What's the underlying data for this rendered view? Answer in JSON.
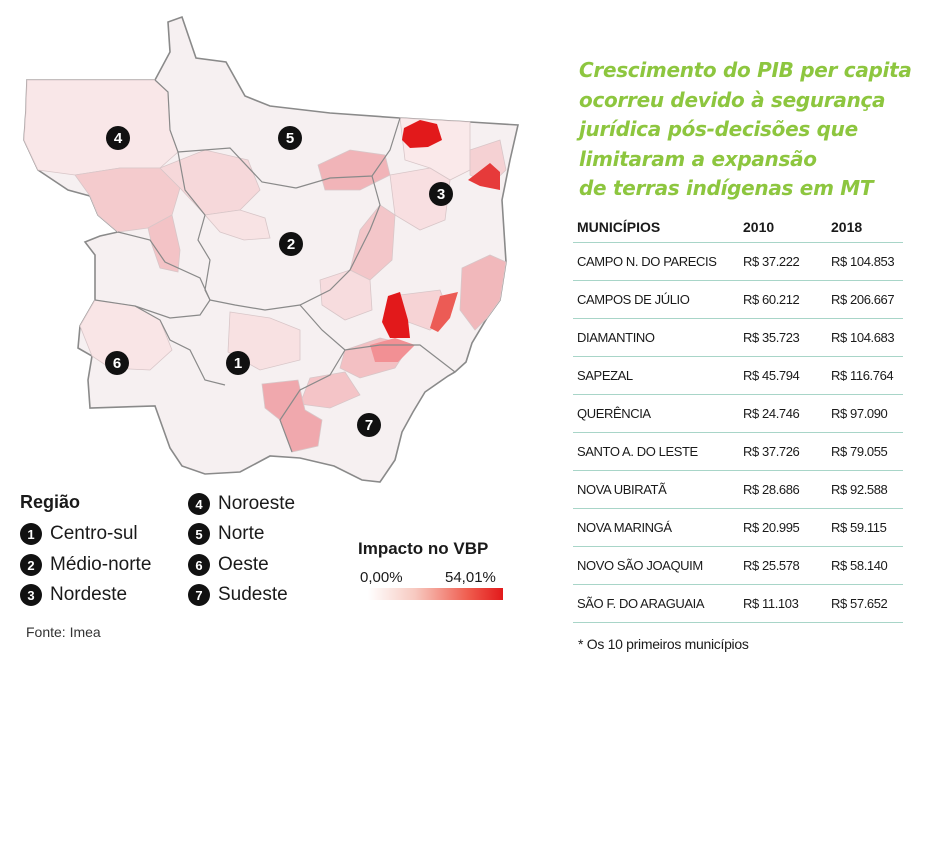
{
  "headline": [
    "Crescimento do PIB per capita",
    "ocorreu devido à segurança",
    "jurídica pós-decisões que",
    "limitaram a expansão",
    "de terras indígenas em MT"
  ],
  "table": {
    "headers": [
      "MUNICÍPIOS",
      "2010",
      "2018"
    ],
    "rows": [
      [
        "CAMPO N. DO PARECIS",
        "R$ 37.222",
        "R$ 104.853"
      ],
      [
        "CAMPOS DE JÚLIO",
        "R$ 60.212",
        "R$ 206.667"
      ],
      [
        "DIAMANTINO",
        "R$ 35.723",
        "R$ 104.683"
      ],
      [
        "SAPEZAL",
        "R$ 45.794",
        "R$ 116.764"
      ],
      [
        "QUERÊNCIA",
        "R$ 24.746",
        "R$ 97.090"
      ],
      [
        "SANTO A. DO LESTE",
        "R$ 37.726",
        "R$ 79.055"
      ],
      [
        "NOVA UBIRATÃ",
        "R$ 28.686",
        "R$ 92.588"
      ],
      [
        "NOVA MARINGÁ",
        "R$ 20.995",
        "R$ 59.115"
      ],
      [
        "NOVO SÃO JOAQUIM",
        "R$ 25.578",
        "R$ 58.140"
      ],
      [
        "SÃO F. DO ARAGUAIA",
        "R$ 11.103",
        "R$ 57.652"
      ]
    ],
    "footnote": "* Os 10 primeiros municípios"
  },
  "legend": {
    "title": "Região",
    "regions": [
      {
        "num": "1",
        "name": "Centro-sul"
      },
      {
        "num": "2",
        "name": "Médio-norte"
      },
      {
        "num": "3",
        "name": "Nordeste"
      },
      {
        "num": "4",
        "name": "Noroeste"
      },
      {
        "num": "5",
        "name": "Norte"
      },
      {
        "num": "6",
        "name": "Oeste"
      },
      {
        "num": "7",
        "name": "Sudeste"
      }
    ]
  },
  "impact_scale": {
    "title": "Impacto no VBP",
    "min_label": "0,00%",
    "max_label": "54,01%",
    "min_color": "#ffffff",
    "max_color": "#e2191b"
  },
  "source": "Fonte: Imea",
  "colors": {
    "headline": "#8dc63f",
    "table_rule": "#a8d5c8",
    "map_base": "#f6f0f1",
    "map_border": "#8c8c8c"
  }
}
